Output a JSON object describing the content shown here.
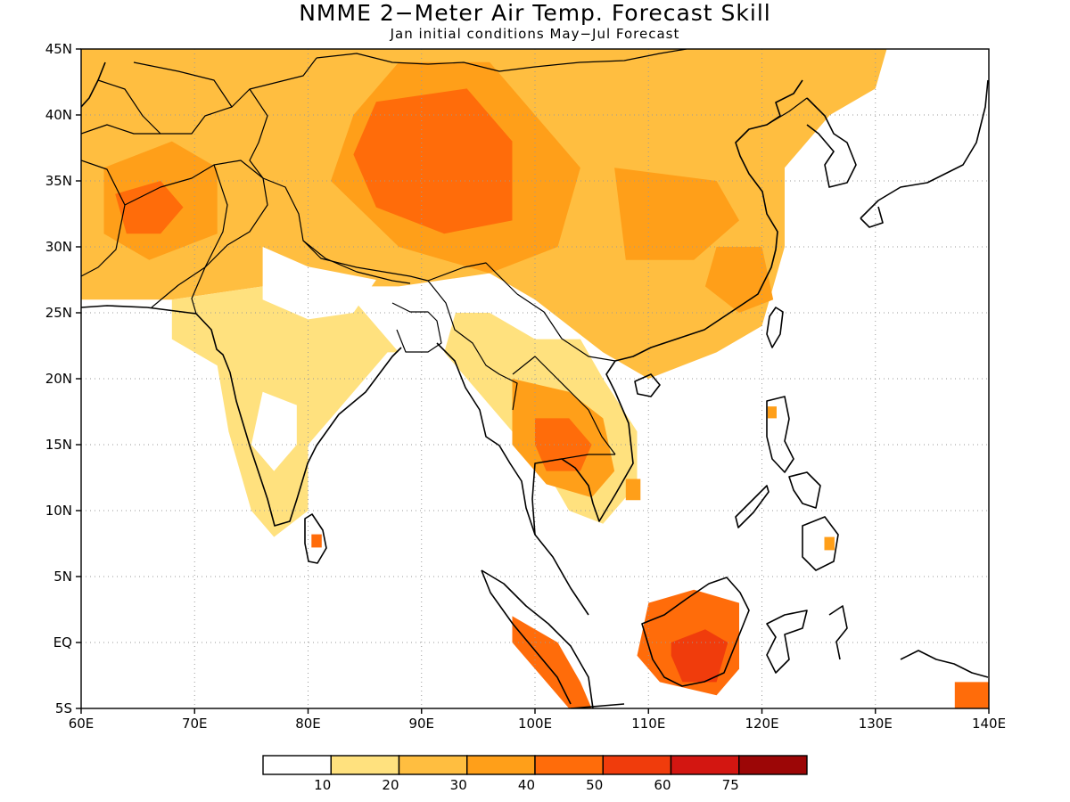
{
  "title": "NMME 2−Meter Air Temp. Forecast Skill",
  "subtitle": "Jan initial conditions   May−Jul Forecast",
  "map": {
    "lon_range": [
      60,
      140
    ],
    "lat_range": [
      -5,
      45
    ],
    "lat_ticks": [
      {
        "value": 45,
        "label": "45N"
      },
      {
        "value": 40,
        "label": "40N"
      },
      {
        "value": 35,
        "label": "35N"
      },
      {
        "value": 30,
        "label": "30N"
      },
      {
        "value": 25,
        "label": "25N"
      },
      {
        "value": 20,
        "label": "20N"
      },
      {
        "value": 15,
        "label": "15N"
      },
      {
        "value": 10,
        "label": "10N"
      },
      {
        "value": 5,
        "label": "5N"
      },
      {
        "value": 0,
        "label": "EQ"
      },
      {
        "value": -5,
        "label": "5S"
      }
    ],
    "lon_ticks": [
      {
        "value": 60,
        "label": "60E"
      },
      {
        "value": 70,
        "label": "70E"
      },
      {
        "value": 80,
        "label": "80E"
      },
      {
        "value": 90,
        "label": "90E"
      },
      {
        "value": 100,
        "label": "100E"
      },
      {
        "value": 110,
        "label": "110E"
      },
      {
        "value": 120,
        "label": "120E"
      },
      {
        "value": 130,
        "label": "130E"
      },
      {
        "value": 140,
        "label": "140E"
      }
    ],
    "grid": true,
    "skill_regions": [
      {
        "level": 2,
        "points": [
          [
            60,
            26
          ],
          [
            68,
            26
          ],
          [
            76,
            27
          ],
          [
            82,
            27
          ],
          [
            88,
            27
          ],
          [
            96,
            28
          ],
          [
            100,
            26
          ],
          [
            106,
            22
          ],
          [
            110,
            20
          ],
          [
            116,
            22
          ],
          [
            120,
            24
          ],
          [
            122,
            30
          ],
          [
            122,
            36
          ],
          [
            126,
            40
          ],
          [
            130,
            42
          ],
          [
            131,
            45
          ],
          [
            60,
            45
          ]
        ]
      },
      {
        "level": 1,
        "points": [
          [
            68,
            23
          ],
          [
            72,
            21
          ],
          [
            73,
            16
          ],
          [
            75,
            10
          ],
          [
            77,
            8
          ],
          [
            80,
            10
          ],
          [
            80,
            15
          ],
          [
            82,
            17
          ],
          [
            87,
            22
          ],
          [
            88,
            22
          ],
          [
            84,
            26
          ],
          [
            76,
            27
          ],
          [
            68,
            26
          ]
        ]
      },
      {
        "level": 1,
        "points": [
          [
            92,
            22
          ],
          [
            98,
            16
          ],
          [
            101,
            13
          ],
          [
            103,
            10
          ],
          [
            106,
            9
          ],
          [
            109,
            12
          ],
          [
            109,
            16
          ],
          [
            106,
            20
          ],
          [
            104,
            23
          ],
          [
            100,
            23
          ],
          [
            96,
            25
          ],
          [
            93,
            25
          ]
        ]
      },
      {
        "level": 0,
        "points": [
          [
            76,
            30
          ],
          [
            80,
            28.5
          ],
          [
            86,
            27.5
          ],
          [
            84,
            25
          ],
          [
            80,
            24.5
          ],
          [
            76,
            26
          ]
        ]
      },
      {
        "level": 0,
        "points": [
          [
            76,
            19
          ],
          [
            79,
            18
          ],
          [
            79,
            15
          ],
          [
            77,
            13
          ],
          [
            75,
            15
          ]
        ]
      },
      {
        "level": 3,
        "points": [
          [
            62,
            36
          ],
          [
            68,
            38
          ],
          [
            72,
            36
          ],
          [
            72,
            31
          ],
          [
            66,
            29
          ],
          [
            62,
            31
          ]
        ]
      },
      {
        "level": 3,
        "points": [
          [
            88,
            44
          ],
          [
            96,
            44
          ],
          [
            100,
            40
          ],
          [
            104,
            36
          ],
          [
            102,
            30
          ],
          [
            96,
            28
          ],
          [
            88,
            30
          ],
          [
            82,
            35
          ],
          [
            84,
            40
          ]
        ]
      },
      {
        "level": 3,
        "points": [
          [
            107,
            36
          ],
          [
            116,
            35
          ],
          [
            118,
            32
          ],
          [
            114,
            29
          ],
          [
            108,
            29
          ]
        ]
      },
      {
        "level": 3,
        "points": [
          [
            116,
            30
          ],
          [
            120,
            30
          ],
          [
            121,
            26
          ],
          [
            118,
            25
          ],
          [
            115,
            27
          ]
        ]
      },
      {
        "level": 4,
        "points": [
          [
            86,
            41
          ],
          [
            94,
            42
          ],
          [
            98,
            38
          ],
          [
            98,
            32
          ],
          [
            92,
            31
          ],
          [
            86,
            33
          ],
          [
            84,
            37
          ]
        ]
      },
      {
        "level": 4,
        "points": [
          [
            63,
            34
          ],
          [
            67,
            35
          ],
          [
            69,
            33
          ],
          [
            67,
            31
          ],
          [
            64,
            31
          ]
        ]
      },
      {
        "level": 3,
        "points": [
          [
            98,
            20
          ],
          [
            103,
            19
          ],
          [
            106,
            17
          ],
          [
            107,
            13
          ],
          [
            105,
            11
          ],
          [
            101,
            12
          ],
          [
            98,
            15
          ]
        ]
      },
      {
        "level": 4,
        "points": [
          [
            100,
            17
          ],
          [
            103,
            17
          ],
          [
            105,
            15
          ],
          [
            104,
            13
          ],
          [
            101,
            13
          ],
          [
            100,
            15
          ]
        ]
      },
      {
        "level": 4,
        "points": [
          [
            110,
            3
          ],
          [
            114,
            4
          ],
          [
            118,
            3
          ],
          [
            118,
            -2
          ],
          [
            116,
            -4
          ],
          [
            111,
            -3
          ],
          [
            109,
            -1
          ]
        ]
      },
      {
        "level": 5,
        "points": [
          [
            112,
            0
          ],
          [
            115,
            1
          ],
          [
            117,
            0
          ],
          [
            116,
            -3
          ],
          [
            113,
            -3
          ],
          [
            112,
            -1
          ]
        ]
      },
      {
        "level": 4,
        "points": [
          [
            98,
            2
          ],
          [
            102,
            0
          ],
          [
            104,
            -3
          ],
          [
            105,
            -5
          ],
          [
            103,
            -5
          ],
          [
            100,
            -2
          ],
          [
            98,
            0
          ]
        ]
      },
      {
        "level": 4,
        "points": [
          [
            137,
            -3
          ],
          [
            140,
            -3
          ],
          [
            140,
            -5
          ],
          [
            137,
            -5
          ]
        ]
      },
      {
        "level": 4,
        "points": [
          [
            80.3,
            8.2
          ],
          [
            81.2,
            8.2
          ],
          [
            81.2,
            7.2
          ],
          [
            80.3,
            7.2
          ]
        ]
      },
      {
        "level": 3,
        "points": [
          [
            120.5,
            17.9
          ],
          [
            121.3,
            17.9
          ],
          [
            121.3,
            17.0
          ],
          [
            120.5,
            17.0
          ]
        ]
      },
      {
        "level": 3,
        "points": [
          [
            125.5,
            8
          ],
          [
            126.4,
            8
          ],
          [
            126.4,
            7.0
          ],
          [
            125.5,
            7.0
          ]
        ]
      },
      {
        "level": 3,
        "points": [
          [
            108.0,
            12.4
          ],
          [
            109.3,
            12.4
          ],
          [
            109.3,
            10.8
          ],
          [
            108.0,
            10.8
          ]
        ]
      }
    ]
  },
  "legend": {
    "colors": [
      "#ffffff",
      "#ffe17e",
      "#ffbe40",
      "#ff9f19",
      "#ff6c0a",
      "#f03c0c",
      "#d31611",
      "#9c0606"
    ],
    "labels": [
      "10",
      "20",
      "30",
      "40",
      "50",
      "60",
      "75"
    ]
  }
}
